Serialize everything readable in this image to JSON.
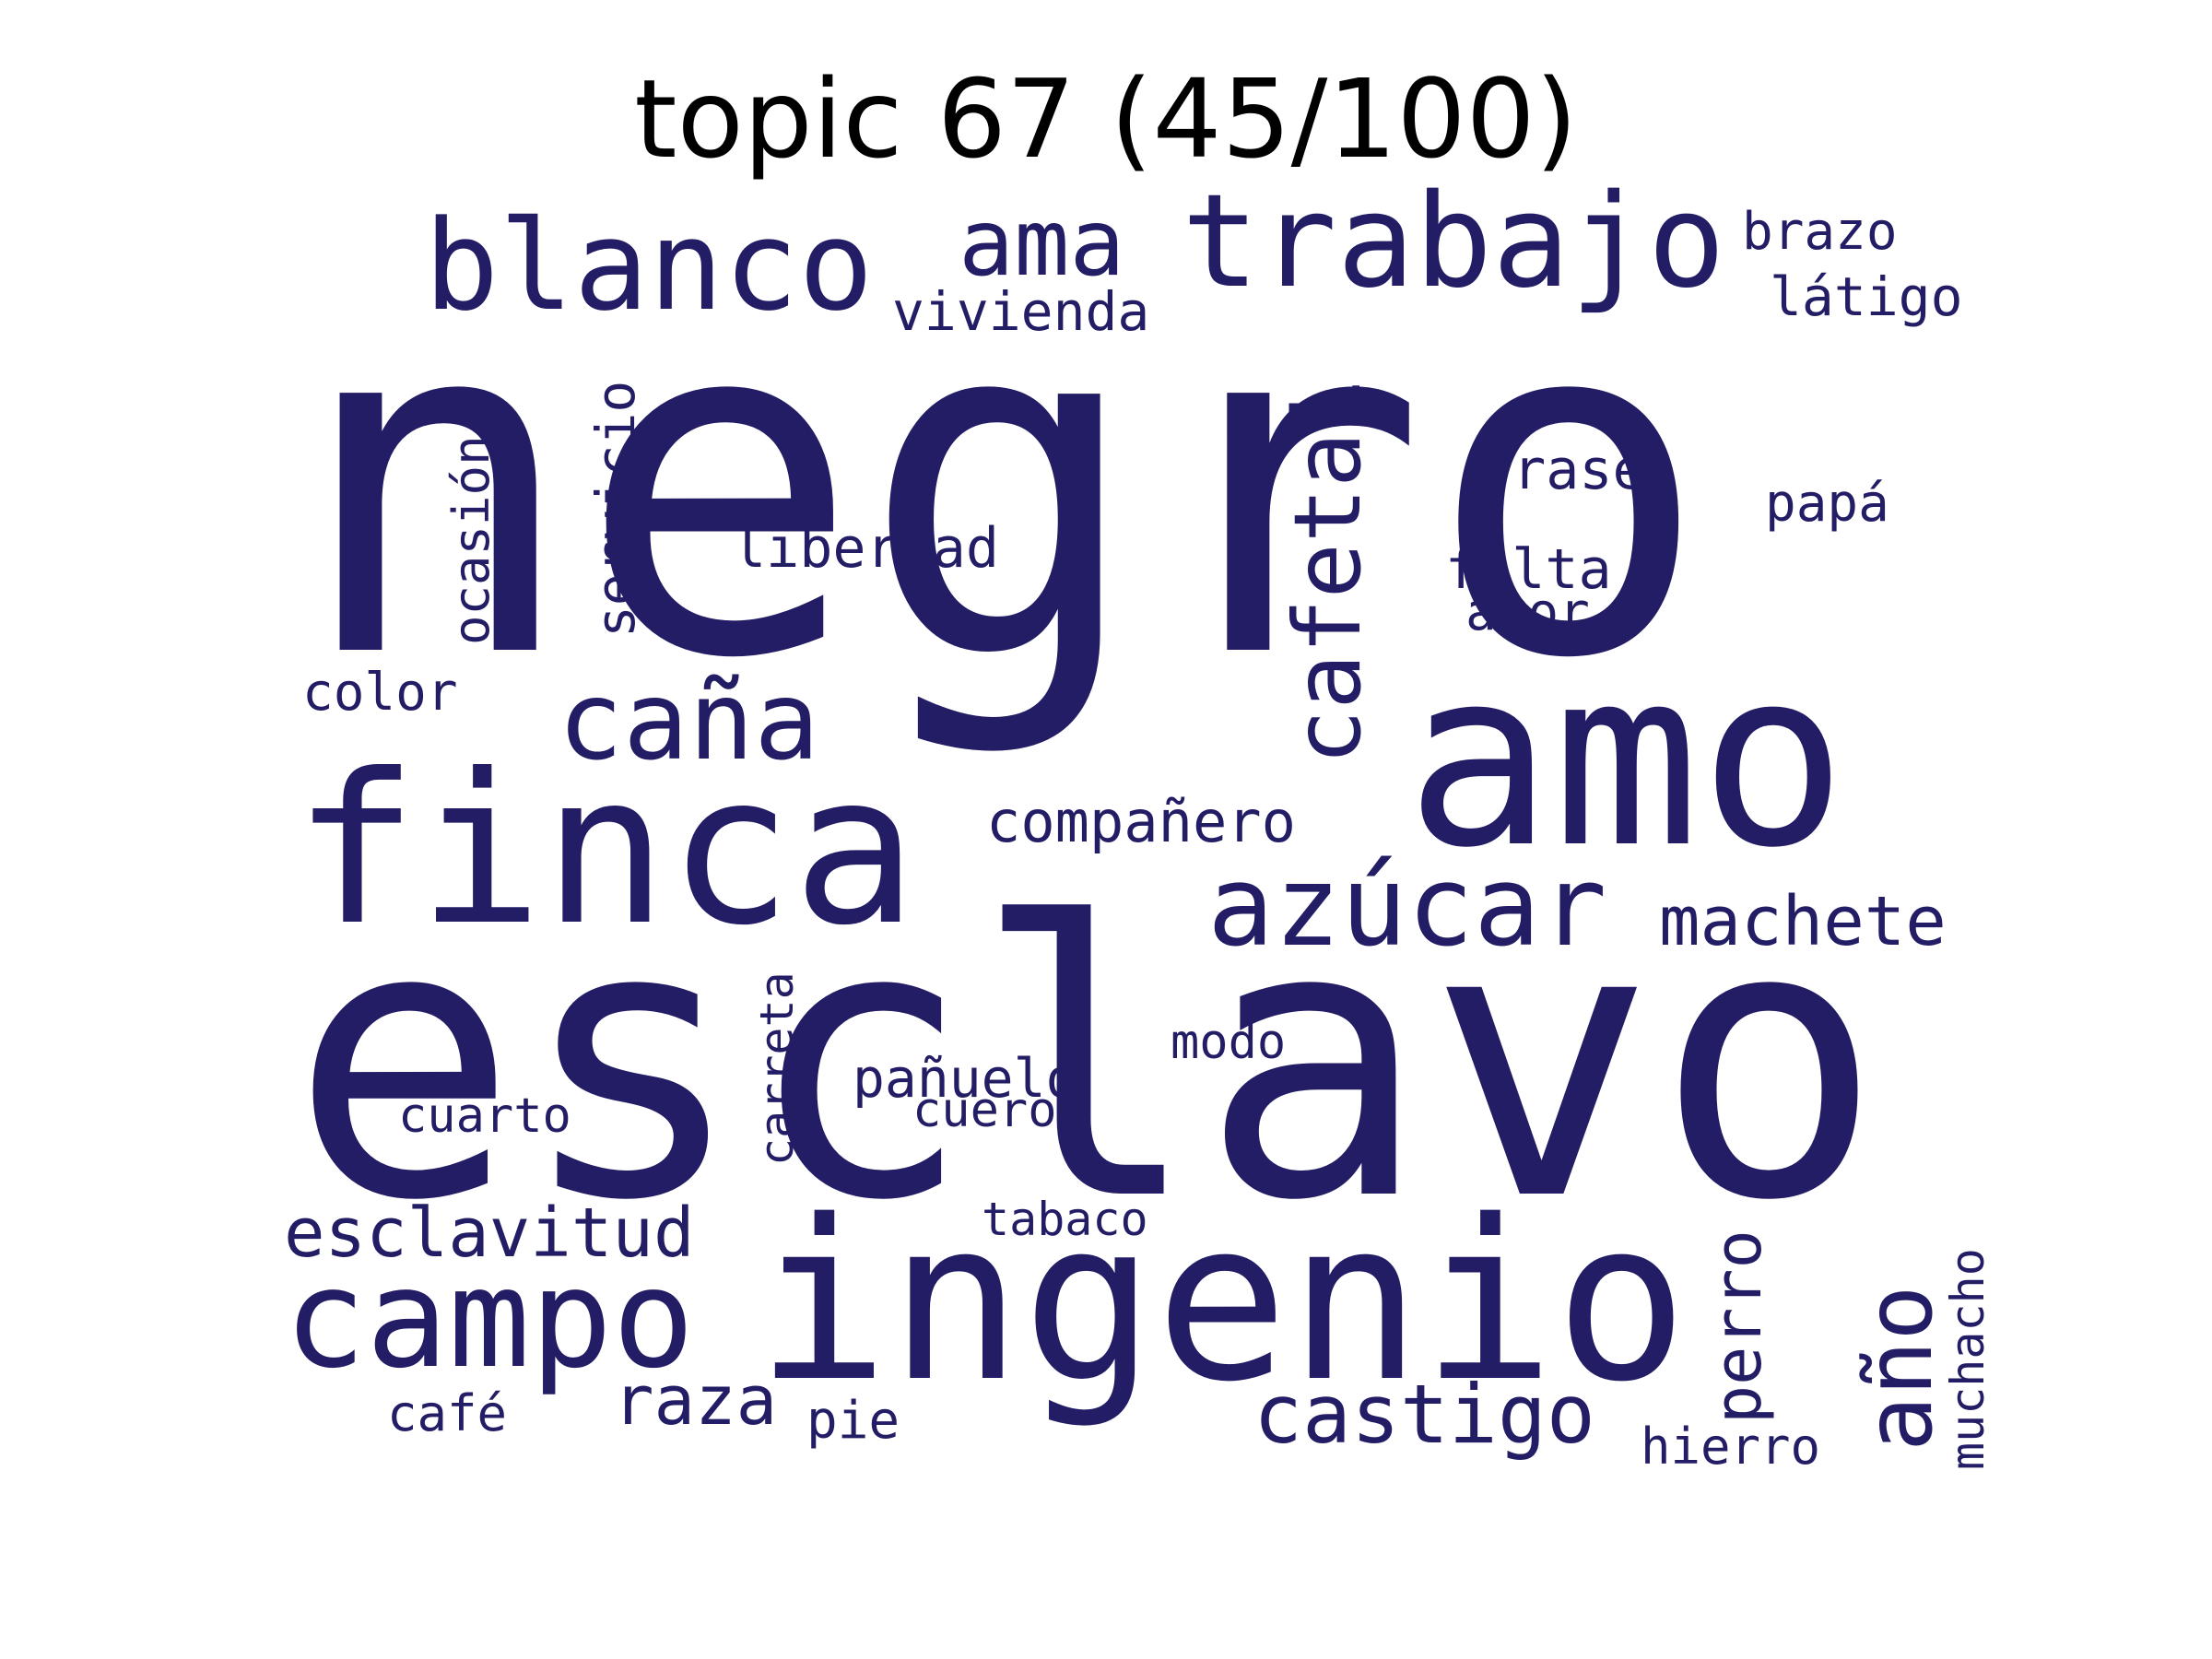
{
  "title": "topic 67 (45/100)",
  "word_color": "#231d66",
  "words": [
    {
      "text": "negro",
      "orientation": "horizontal"
    },
    {
      "text": "esclavo",
      "orientation": "horizontal"
    },
    {
      "text": "ingenio",
      "orientation": "horizontal"
    },
    {
      "text": "amo",
      "orientation": "horizontal"
    },
    {
      "text": "finca",
      "orientation": "horizontal"
    },
    {
      "text": "trabajo",
      "orientation": "horizontal"
    },
    {
      "text": "blanco",
      "orientation": "horizontal"
    },
    {
      "text": "campo",
      "orientation": "horizontal"
    },
    {
      "text": "azúcar",
      "orientation": "horizontal"
    },
    {
      "text": "caña",
      "orientation": "horizontal"
    },
    {
      "text": "cafetal",
      "orientation": "vertical"
    },
    {
      "text": "ama",
      "orientation": "horizontal"
    },
    {
      "text": "año",
      "orientation": "vertical"
    },
    {
      "text": "castigo",
      "orientation": "horizontal"
    },
    {
      "text": "machete",
      "orientation": "horizontal"
    },
    {
      "text": "esclavitud",
      "orientation": "horizontal"
    },
    {
      "text": "raza",
      "orientation": "horizontal"
    },
    {
      "text": "perro",
      "orientation": "vertical"
    },
    {
      "text": "compañero",
      "orientation": "horizontal"
    },
    {
      "text": "libertad",
      "orientation": "horizontal"
    },
    {
      "text": "servicio",
      "orientation": "vertical"
    },
    {
      "text": "vivienda",
      "orientation": "horizontal"
    },
    {
      "text": "brazo",
      "orientation": "horizontal"
    },
    {
      "text": "látigo",
      "orientation": "horizontal"
    },
    {
      "text": "frase",
      "orientation": "horizontal"
    },
    {
      "text": "falta",
      "orientation": "horizontal"
    },
    {
      "text": "papá",
      "orientation": "horizontal"
    },
    {
      "text": "ocasión",
      "orientation": "vertical"
    },
    {
      "text": "color",
      "orientation": "horizontal"
    },
    {
      "text": "pañuelo",
      "orientation": "horizontal"
    },
    {
      "text": "amor",
      "orientation": "horizontal"
    },
    {
      "text": "carreta",
      "orientation": "vertical"
    },
    {
      "text": "muchacho",
      "orientation": "vertical"
    },
    {
      "text": "cuarto",
      "orientation": "horizontal"
    },
    {
      "text": "cuero",
      "orientation": "horizontal"
    },
    {
      "text": "modo",
      "orientation": "horizontal"
    },
    {
      "text": "tabaco",
      "orientation": "horizontal"
    },
    {
      "text": "café",
      "orientation": "horizontal"
    },
    {
      "text": "pie",
      "orientation": "horizontal"
    },
    {
      "text": "hierro",
      "orientation": "horizontal"
    }
  ]
}
